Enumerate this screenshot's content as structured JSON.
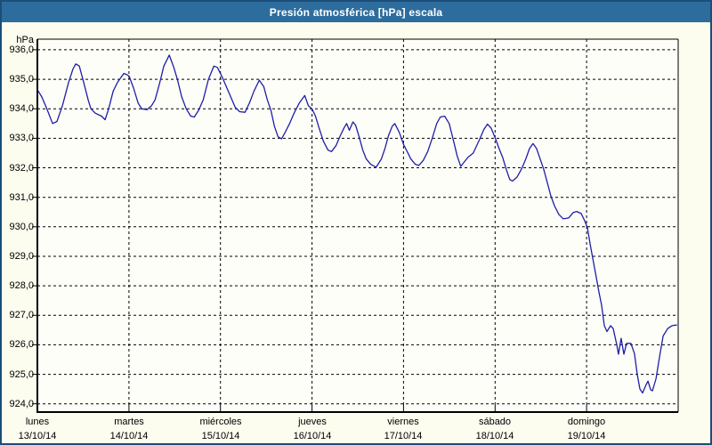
{
  "window": {
    "title": "Presión atmosférica [hPa] escala"
  },
  "colors": {
    "titlebar_bg": "#2d6d9e",
    "window_border": "#1b4e79",
    "content_bg": "#fcfcef",
    "plot_bg": "#fefef9",
    "line": "#1e1ea8",
    "grid": "#000000",
    "text": "#000000",
    "title_text": "#ffffff"
  },
  "chart_data": {
    "type": "line",
    "title": "Presión atmosférica [hPa] escala",
    "ylabel": "hPa",
    "xlabel": "",
    "grid": "dashed",
    "legend": "none",
    "ylim": [
      923.72,
      936.36
    ],
    "ytick_step": 1.0,
    "yticks": [
      {
        "v": 936,
        "label": "936,0"
      },
      {
        "v": 935,
        "label": "935,0"
      },
      {
        "v": 934,
        "label": "934,0"
      },
      {
        "v": 933,
        "label": "933,0"
      },
      {
        "v": 932,
        "label": "932,0"
      },
      {
        "v": 931,
        "label": "931,0"
      },
      {
        "v": 930,
        "label": "930,0"
      },
      {
        "v": 929,
        "label": "929,0"
      },
      {
        "v": 928,
        "label": "928,0"
      },
      {
        "v": 927,
        "label": "927,0"
      },
      {
        "v": 926,
        "label": "926,0"
      },
      {
        "v": 925,
        "label": "925,0"
      },
      {
        "v": 924,
        "label": "924,0"
      }
    ],
    "x_axis": {
      "range_days": 7,
      "days": [
        {
          "name": "lunes",
          "date": "13/10/14"
        },
        {
          "name": "martes",
          "date": "14/10/14"
        },
        {
          "name": "miércoles",
          "date": "15/10/14"
        },
        {
          "name": "jueves",
          "date": "16/10/14"
        },
        {
          "name": "viernes",
          "date": "17/10/14"
        },
        {
          "name": "sábado",
          "date": "18/10/14"
        },
        {
          "name": "domingo",
          "date": "19/10/14"
        }
      ]
    },
    "series": [
      {
        "name": "Presión atmosférica",
        "unit": "hPa",
        "color": "#1e1ea8",
        "points": [
          [
            0.0,
            934.65
          ],
          [
            0.049,
            934.4
          ],
          [
            0.097,
            934.05
          ],
          [
            0.166,
            933.5
          ],
          [
            0.214,
            933.57
          ],
          [
            0.273,
            934.1
          ],
          [
            0.341,
            934.9
          ],
          [
            0.389,
            935.35
          ],
          [
            0.419,
            935.52
          ],
          [
            0.458,
            935.45
          ],
          [
            0.506,
            934.9
          ],
          [
            0.555,
            934.3
          ],
          [
            0.584,
            934.0
          ],
          [
            0.633,
            933.85
          ],
          [
            0.701,
            933.75
          ],
          [
            0.74,
            933.63
          ],
          [
            0.779,
            934.0
          ],
          [
            0.828,
            934.6
          ],
          [
            0.876,
            934.9
          ],
          [
            0.944,
            935.2
          ],
          [
            0.983,
            935.15
          ],
          [
            1.003,
            935.1
          ],
          [
            1.051,
            934.7
          ],
          [
            1.1,
            934.2
          ],
          [
            1.139,
            934.0
          ],
          [
            1.198,
            933.97
          ],
          [
            1.246,
            934.1
          ],
          [
            1.285,
            934.3
          ],
          [
            1.334,
            934.85
          ],
          [
            1.382,
            935.45
          ],
          [
            1.441,
            935.82
          ],
          [
            1.49,
            935.4
          ],
          [
            1.529,
            935.0
          ],
          [
            1.577,
            934.4
          ],
          [
            1.626,
            934.0
          ],
          [
            1.675,
            933.75
          ],
          [
            1.714,
            933.72
          ],
          [
            1.762,
            933.95
          ],
          [
            1.811,
            934.3
          ],
          [
            1.869,
            935.0
          ],
          [
            1.928,
            935.45
          ],
          [
            1.967,
            935.4
          ],
          [
            2.015,
            935.1
          ],
          [
            2.064,
            934.75
          ],
          [
            2.113,
            934.4
          ],
          [
            2.161,
            934.05
          ],
          [
            2.21,
            933.9
          ],
          [
            2.268,
            933.88
          ],
          [
            2.317,
            934.2
          ],
          [
            2.366,
            934.6
          ],
          [
            2.424,
            934.97
          ],
          [
            2.473,
            934.75
          ],
          [
            2.512,
            934.3
          ],
          [
            2.551,
            933.95
          ],
          [
            2.59,
            933.4
          ],
          [
            2.629,
            933.05
          ],
          [
            2.668,
            932.98
          ],
          [
            2.707,
            933.2
          ],
          [
            2.755,
            933.5
          ],
          [
            2.804,
            933.85
          ],
          [
            2.862,
            934.2
          ],
          [
            2.921,
            934.45
          ],
          [
            2.96,
            934.1
          ],
          [
            2.999,
            934.0
          ],
          [
            3.038,
            933.75
          ],
          [
            3.077,
            933.35
          ],
          [
            3.125,
            932.9
          ],
          [
            3.174,
            932.6
          ],
          [
            3.213,
            932.55
          ],
          [
            3.262,
            932.75
          ],
          [
            3.31,
            933.1
          ],
          [
            3.349,
            933.35
          ],
          [
            3.378,
            933.5
          ],
          [
            3.408,
            933.27
          ],
          [
            3.447,
            933.55
          ],
          [
            3.476,
            933.45
          ],
          [
            3.515,
            933.05
          ],
          [
            3.554,
            932.6
          ],
          [
            3.592,
            932.3
          ],
          [
            3.641,
            932.12
          ],
          [
            3.7,
            932.02
          ],
          [
            3.758,
            932.3
          ],
          [
            3.797,
            932.65
          ],
          [
            3.836,
            933.1
          ],
          [
            3.875,
            933.4
          ],
          [
            3.904,
            933.5
          ],
          [
            3.953,
            933.2
          ],
          [
            4.002,
            932.78
          ],
          [
            4.04,
            932.55
          ],
          [
            4.079,
            932.3
          ],
          [
            4.128,
            932.12
          ],
          [
            4.167,
            932.08
          ],
          [
            4.216,
            932.25
          ],
          [
            4.264,
            932.55
          ],
          [
            4.313,
            933.0
          ],
          [
            4.362,
            933.5
          ],
          [
            4.401,
            933.72
          ],
          [
            4.449,
            933.75
          ],
          [
            4.498,
            933.5
          ],
          [
            4.547,
            932.9
          ],
          [
            4.586,
            932.4
          ],
          [
            4.625,
            932.05
          ],
          [
            4.664,
            932.2
          ],
          [
            4.703,
            932.35
          ],
          [
            4.761,
            932.5
          ],
          [
            4.829,
            932.95
          ],
          [
            4.878,
            933.3
          ],
          [
            4.917,
            933.48
          ],
          [
            4.956,
            933.35
          ],
          [
            5.005,
            932.98
          ],
          [
            5.044,
            932.65
          ],
          [
            5.083,
            932.35
          ],
          [
            5.122,
            931.95
          ],
          [
            5.161,
            931.6
          ],
          [
            5.19,
            931.55
          ],
          [
            5.239,
            931.68
          ],
          [
            5.287,
            931.95
          ],
          [
            5.336,
            932.3
          ],
          [
            5.375,
            932.65
          ],
          [
            5.414,
            932.82
          ],
          [
            5.453,
            932.65
          ],
          [
            5.492,
            932.3
          ],
          [
            5.531,
            931.95
          ],
          [
            5.57,
            931.5
          ],
          [
            5.609,
            931.05
          ],
          [
            5.648,
            930.72
          ],
          [
            5.696,
            930.42
          ],
          [
            5.745,
            930.27
          ],
          [
            5.803,
            930.3
          ],
          [
            5.852,
            930.48
          ],
          [
            5.891,
            930.52
          ],
          [
            5.94,
            930.45
          ],
          [
            5.979,
            930.2
          ],
          [
            6.008,
            929.97
          ],
          [
            6.037,
            929.45
          ],
          [
            6.066,
            928.95
          ],
          [
            6.105,
            928.3
          ],
          [
            6.134,
            927.8
          ],
          [
            6.163,
            927.35
          ],
          [
            6.193,
            926.65
          ],
          [
            6.222,
            926.45
          ],
          [
            6.261,
            926.65
          ],
          [
            6.29,
            926.55
          ],
          [
            6.329,
            926.0
          ],
          [
            6.348,
            925.68
          ],
          [
            6.377,
            926.22
          ],
          [
            6.407,
            925.68
          ],
          [
            6.436,
            926.05
          ],
          [
            6.484,
            926.05
          ],
          [
            6.523,
            925.7
          ],
          [
            6.553,
            925.0
          ],
          [
            6.582,
            924.5
          ],
          [
            6.611,
            924.37
          ],
          [
            6.65,
            924.65
          ],
          [
            6.67,
            924.77
          ],
          [
            6.699,
            924.48
          ],
          [
            6.719,
            924.44
          ],
          [
            6.758,
            924.85
          ],
          [
            6.797,
            925.6
          ],
          [
            6.836,
            926.3
          ],
          [
            6.885,
            926.55
          ],
          [
            6.933,
            926.65
          ],
          [
            6.982,
            926.67
          ]
        ]
      }
    ]
  }
}
